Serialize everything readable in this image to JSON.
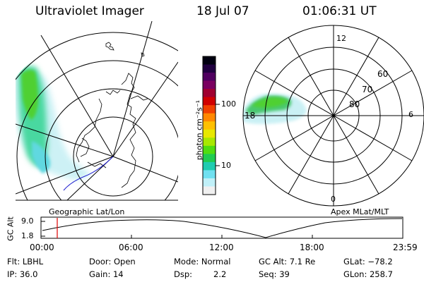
{
  "header": {
    "instrument": "Ultraviolet Imager",
    "date": "18 Jul 07",
    "time": "01:06:31 UT"
  },
  "left_map": {
    "label": "Geographic Lat/Lon"
  },
  "right_map": {
    "label": "Apex MLat/MLT",
    "lat_labels": [
      "60",
      "70",
      "80"
    ],
    "mlt_labels": {
      "top": "12",
      "left": "18",
      "right": "6",
      "bottom": "0"
    }
  },
  "colorbar": {
    "unit_label": "photon cm⁻²s⁻¹",
    "tick_labels": [
      "100",
      "10"
    ],
    "colors": [
      "#000010",
      "#200040",
      "#500060",
      "#7a0060",
      "#a00030",
      "#d00000",
      "#f04000",
      "#ff8800",
      "#ffc000",
      "#e8e800",
      "#a8e800",
      "#50dd10",
      "#20cc50",
      "#20ccb0",
      "#70e0f0",
      "#c0f0f8",
      "#f0f0f0"
    ]
  },
  "orbit_plot": {
    "ylabel": "GC Alt",
    "ytick_top": "9.0",
    "ytick_bottom": "1.8",
    "xticks": [
      "00:00",
      "06:00",
      "12:00",
      "18:00",
      "23:59"
    ],
    "current_time_fraction": 0.045
  },
  "info": {
    "flt": "Flt: LBHL",
    "ip": "IP: 36.0",
    "door": "Door: Open",
    "gain": "Gain: 14",
    "mode": "Mode: Normal",
    "dsp_label": "Dsp:",
    "dsp_value": "2.2",
    "gcalt": "GC Alt: 7.1 Re",
    "seq": "Seq: 39",
    "glat": "GLat: −78.2",
    "glon": "GLon: 258.7"
  }
}
